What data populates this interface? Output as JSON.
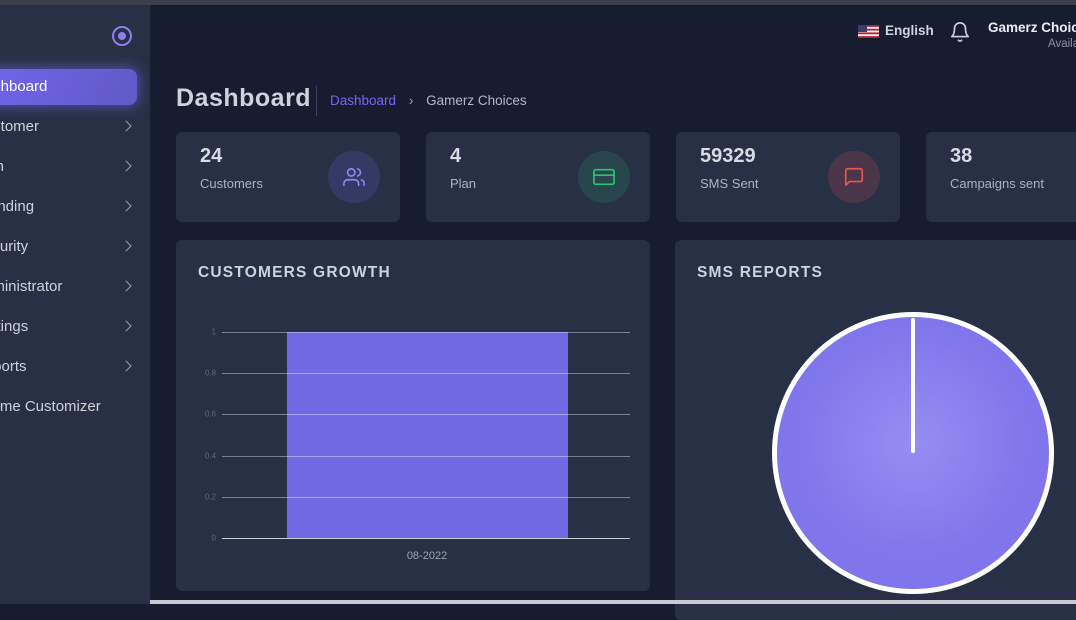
{
  "page": {
    "title": "Dashboard",
    "breadcrumb": {
      "link": "Dashboard",
      "separator": "›",
      "current": "Gamerz Choices"
    }
  },
  "topbar": {
    "language": "English",
    "user": {
      "name": "Gamerz Choices",
      "status": "Available"
    }
  },
  "sidebar": {
    "items": [
      {
        "label": "Dashboard",
        "active": true,
        "chevron": false
      },
      {
        "label": "Customer",
        "active": false,
        "chevron": true
      },
      {
        "label": "Plan",
        "active": false,
        "chevron": true
      },
      {
        "label": "Branding",
        "active": false,
        "chevron": true
      },
      {
        "label": "Security",
        "active": false,
        "chevron": true
      },
      {
        "label": "Administrator",
        "active": false,
        "chevron": true
      },
      {
        "label": "Settings",
        "active": false,
        "chevron": true
      },
      {
        "label": "Reports",
        "active": false,
        "chevron": true
      },
      {
        "label": "Theme Customizer",
        "active": false,
        "chevron": false
      }
    ]
  },
  "stats": [
    {
      "value": "24",
      "label": "Customers",
      "icon": "users-icon",
      "accent": "#7367f0"
    },
    {
      "value": "4",
      "label": "Plan",
      "icon": "credit-card-icon",
      "accent": "#28c76f"
    },
    {
      "value": "59329",
      "label": "SMS Sent",
      "icon": "message-square-icon",
      "accent": "#ea5455"
    },
    {
      "value": "38",
      "label": "Campaigns sent",
      "icon": null,
      "accent": null
    }
  ],
  "chart_data": [
    {
      "type": "bar",
      "title": "CUSTOMERS GROWTH",
      "categories": [
        "08-2022"
      ],
      "values": [
        1
      ],
      "ylim": [
        0,
        1
      ],
      "yticks": [
        "1",
        "0.8",
        "0.6",
        "0.4",
        "0.2",
        "0"
      ],
      "xlabel": "",
      "ylabel": "",
      "bar_color": "#7168e4",
      "grid": true,
      "legend": false
    },
    {
      "type": "pie",
      "title": "SMS REPORTS",
      "slices": [
        {
          "label": "",
          "value": 100,
          "color": "#7d71ea"
        }
      ],
      "stroke": "#ffffff",
      "legend": false
    }
  ],
  "colors": {
    "primary": "#7367f0",
    "success": "#28c76f",
    "danger": "#ea5455",
    "background": "#161d31",
    "card": "#283046"
  }
}
